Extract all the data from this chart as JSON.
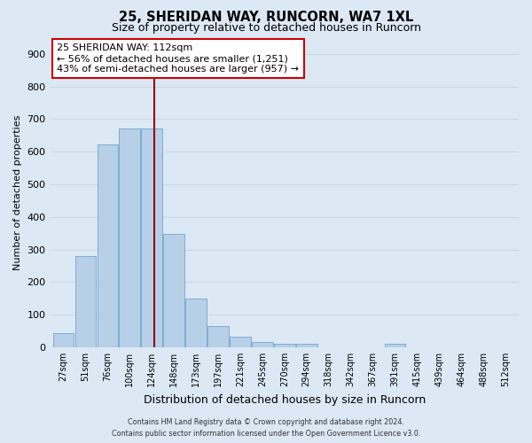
{
  "title": "25, SHERIDAN WAY, RUNCORN, WA7 1XL",
  "subtitle": "Size of property relative to detached houses in Runcorn",
  "xlabel": "Distribution of detached houses by size in Runcorn",
  "ylabel": "Number of detached properties",
  "bar_labels": [
    "27sqm",
    "51sqm",
    "76sqm",
    "100sqm",
    "124sqm",
    "148sqm",
    "173sqm",
    "197sqm",
    "221sqm",
    "245sqm",
    "270sqm",
    "294sqm",
    "318sqm",
    "342sqm",
    "367sqm",
    "391sqm",
    "415sqm",
    "439sqm",
    "464sqm",
    "488sqm",
    "512sqm"
  ],
  "bar_values": [
    44,
    280,
    622,
    670,
    670,
    347,
    148,
    65,
    32,
    15,
    10,
    10,
    0,
    0,
    0,
    10,
    0,
    0,
    0,
    0,
    0
  ],
  "bar_color": "#b8cfe8",
  "bar_edge_color": "#7baed4",
  "grid_color": "#c8d8ea",
  "background_color": "#dce8f4",
  "vline_color": "#990000",
  "annotation_title": "25 SHERIDAN WAY: 112sqm",
  "annotation_line1": "← 56% of detached houses are smaller (1,251)",
  "annotation_line2": "43% of semi-detached houses are larger (957) →",
  "annotation_box_color": "#ffffff",
  "annotation_box_edge": "#cc0000",
  "ylim": [
    0,
    950
  ],
  "yticks": [
    0,
    100,
    200,
    300,
    400,
    500,
    600,
    700,
    800,
    900
  ],
  "footer_line1": "Contains HM Land Registry data © Crown copyright and database right 2024.",
  "footer_line2": "Contains public sector information licensed under the Open Government Licence v3.0.",
  "vline_pos": 4.12
}
